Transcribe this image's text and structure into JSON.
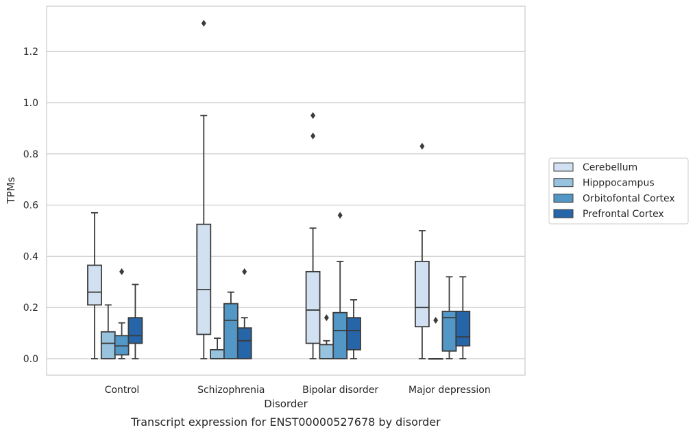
{
  "chart_data": {
    "type": "box",
    "title": "",
    "caption": "Transcript expression for ENST00000527678 by disorder",
    "xlabel": "Disorder",
    "ylabel": "TPMs",
    "ylim": [
      -0.065,
      1.38
    ],
    "yticks": [
      "0.0",
      "0.2",
      "0.4",
      "0.6",
      "0.8",
      "1.0",
      "1.2"
    ],
    "grid": true,
    "legend_position": "right",
    "categories": [
      "Control",
      "Schizophrenia",
      "Bipolar disorder",
      "Major depression"
    ],
    "series": [
      {
        "name": "Cerebellum",
        "color": "#d1e1f1",
        "boxes": [
          {
            "whislo": 0.0,
            "q1": 0.21,
            "med": 0.26,
            "q3": 0.365,
            "whishi": 0.57,
            "fliers": []
          },
          {
            "whislo": 0.0,
            "q1": 0.095,
            "med": 0.27,
            "q3": 0.525,
            "whishi": 0.95,
            "fliers": [
              1.31
            ]
          },
          {
            "whislo": 0.0,
            "q1": 0.06,
            "med": 0.19,
            "q3": 0.34,
            "whishi": 0.51,
            "fliers": [
              0.87,
              0.95
            ]
          },
          {
            "whislo": 0.0,
            "q1": 0.125,
            "med": 0.2,
            "q3": 0.38,
            "whishi": 0.5,
            "fliers": [
              0.83
            ]
          }
        ]
      },
      {
        "name": "Hipppocampus",
        "color": "#98c3df",
        "boxes": [
          {
            "whislo": 0.0,
            "q1": 0.0,
            "med": 0.06,
            "q3": 0.105,
            "whishi": 0.21,
            "fliers": []
          },
          {
            "whislo": 0.0,
            "q1": 0.0,
            "med": 0.0,
            "q3": 0.035,
            "whishi": 0.08,
            "fliers": []
          },
          {
            "whislo": 0.0,
            "q1": 0.0,
            "med": 0.0,
            "q3": 0.055,
            "whishi": 0.07,
            "fliers": [
              0.16
            ]
          },
          {
            "whislo": 0.0,
            "q1": 0.0,
            "med": 0.0,
            "q3": 0.0,
            "whishi": 0.0,
            "fliers": [
              0.15
            ]
          }
        ]
      },
      {
        "name": "Orbitofontal Cortex",
        "color": "#5397c6",
        "boxes": [
          {
            "whislo": 0.0,
            "q1": 0.015,
            "med": 0.05,
            "q3": 0.09,
            "whishi": 0.14,
            "fliers": [
              0.34
            ]
          },
          {
            "whislo": 0.0,
            "q1": 0.0,
            "med": 0.15,
            "q3": 0.215,
            "whishi": 0.26,
            "fliers": []
          },
          {
            "whislo": 0.0,
            "q1": 0.0,
            "med": 0.11,
            "q3": 0.18,
            "whishi": 0.38,
            "fliers": [
              0.56
            ]
          },
          {
            "whislo": 0.0,
            "q1": 0.03,
            "med": 0.16,
            "q3": 0.185,
            "whishi": 0.32,
            "fliers": []
          }
        ]
      },
      {
        "name": "Prefrontal Cortex",
        "color": "#2565a8",
        "boxes": [
          {
            "whislo": 0.0,
            "q1": 0.06,
            "med": 0.09,
            "q3": 0.16,
            "whishi": 0.29,
            "fliers": []
          },
          {
            "whislo": 0.0,
            "q1": 0.0,
            "med": 0.07,
            "q3": 0.12,
            "whishi": 0.16,
            "fliers": [
              0.34
            ]
          },
          {
            "whislo": 0.0,
            "q1": 0.035,
            "med": 0.11,
            "q3": 0.16,
            "whishi": 0.23,
            "fliers": []
          },
          {
            "whislo": 0.0,
            "q1": 0.05,
            "med": 0.085,
            "q3": 0.185,
            "whishi": 0.32,
            "fliers": []
          }
        ]
      }
    ]
  }
}
